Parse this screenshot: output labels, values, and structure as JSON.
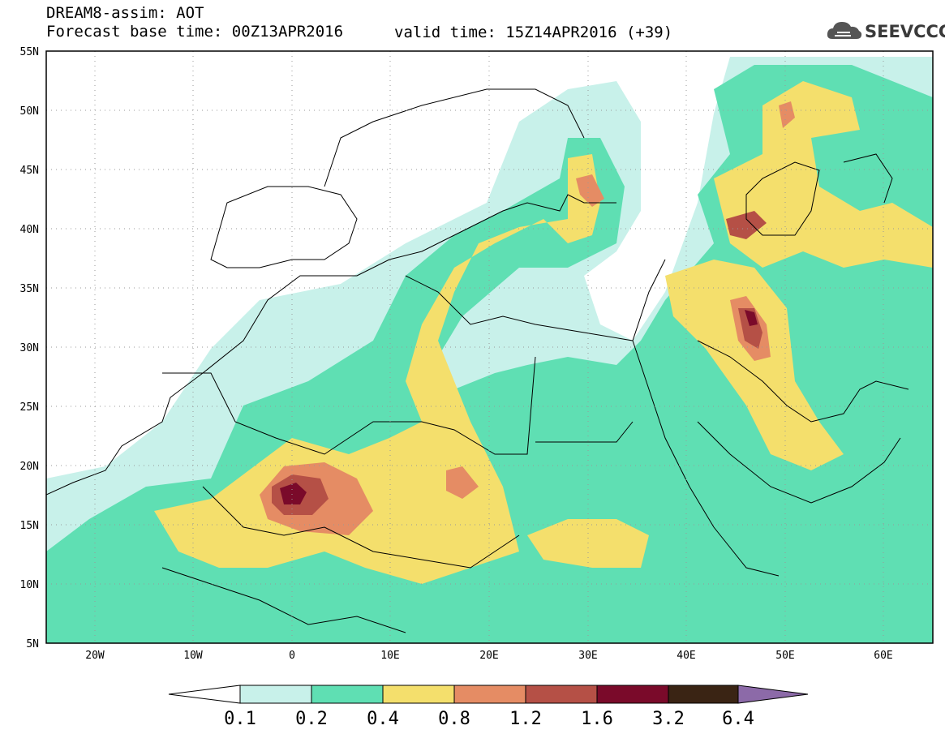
{
  "title": {
    "line1": "DREAM8-assim: AOT",
    "line2": "Forecast base time: 00Z13APR2016",
    "valid": "valid time: 15Z14APR2016 (+39)"
  },
  "logo": {
    "text": "SEEVCCC",
    "icon": "cloud-icon"
  },
  "map": {
    "lat_labels": [
      "55N",
      "50N",
      "45N",
      "40N",
      "35N",
      "30N",
      "25N",
      "20N",
      "15N",
      "10N",
      "5N"
    ],
    "lon_labels": [
      "20W",
      "10W",
      "0",
      "10E",
      "20E",
      "30E",
      "40E",
      "50E",
      "60E"
    ],
    "lat_range": [
      5,
      55
    ],
    "lon_range": [
      -25,
      65
    ]
  },
  "colorbar": {
    "labels": [
      "0.1",
      "0.2",
      "0.4",
      "0.8",
      "1.2",
      "1.6",
      "3.2",
      "6.4"
    ],
    "colors": [
      "#ffffff",
      "#c8f1ea",
      "#5fdfb3",
      "#f4df6c",
      "#e58c64",
      "#b55046",
      "#7a0a2a",
      "#3a2414",
      "#8c6aa8"
    ]
  }
}
